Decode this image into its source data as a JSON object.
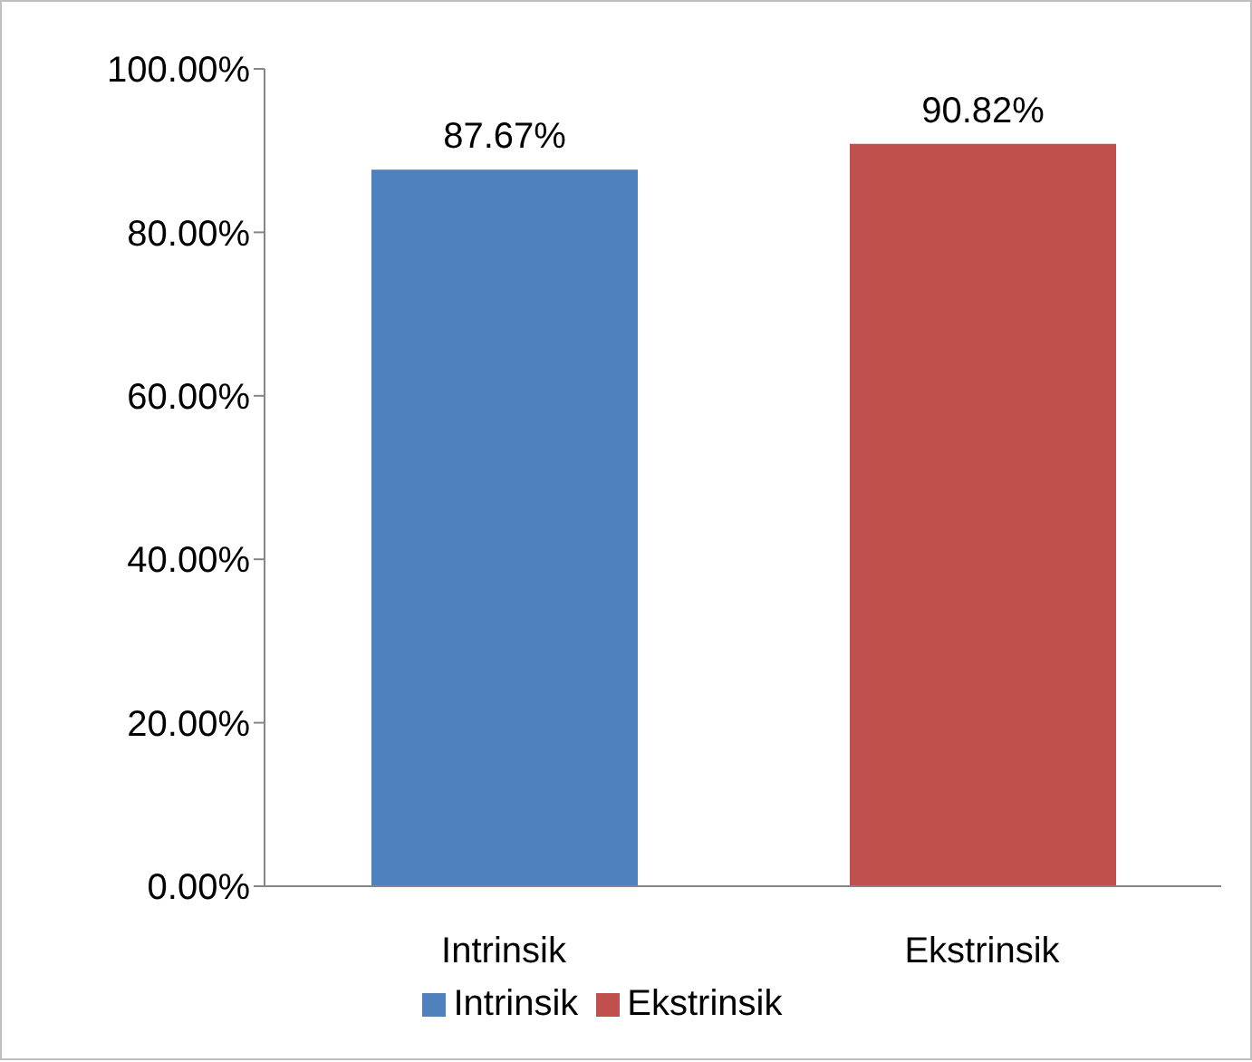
{
  "chart_data": {
    "type": "bar",
    "categories": [
      "Intrinsik",
      "Ekstrinsik"
    ],
    "series": [
      {
        "name": "Intrinsik",
        "color": "#4f81bd",
        "values": [
          87.67,
          null
        ],
        "value_labels": [
          "87.67%",
          null
        ]
      },
      {
        "name": "Ekstrinsik",
        "color": "#c0504d",
        "values": [
          null,
          90.82
        ],
        "value_labels": [
          null,
          "90.82%"
        ]
      }
    ],
    "ylim": [
      0,
      100
    ],
    "yticks": [
      {
        "value": 0,
        "label": "0.00%"
      },
      {
        "value": 20,
        "label": "20.00%"
      },
      {
        "value": 40,
        "label": "40.00%"
      },
      {
        "value": 60,
        "label": "60.00%"
      },
      {
        "value": 80,
        "label": "80.00%"
      },
      {
        "value": 100,
        "label": "100.00%"
      }
    ],
    "grid": false,
    "legend": "bottom"
  }
}
